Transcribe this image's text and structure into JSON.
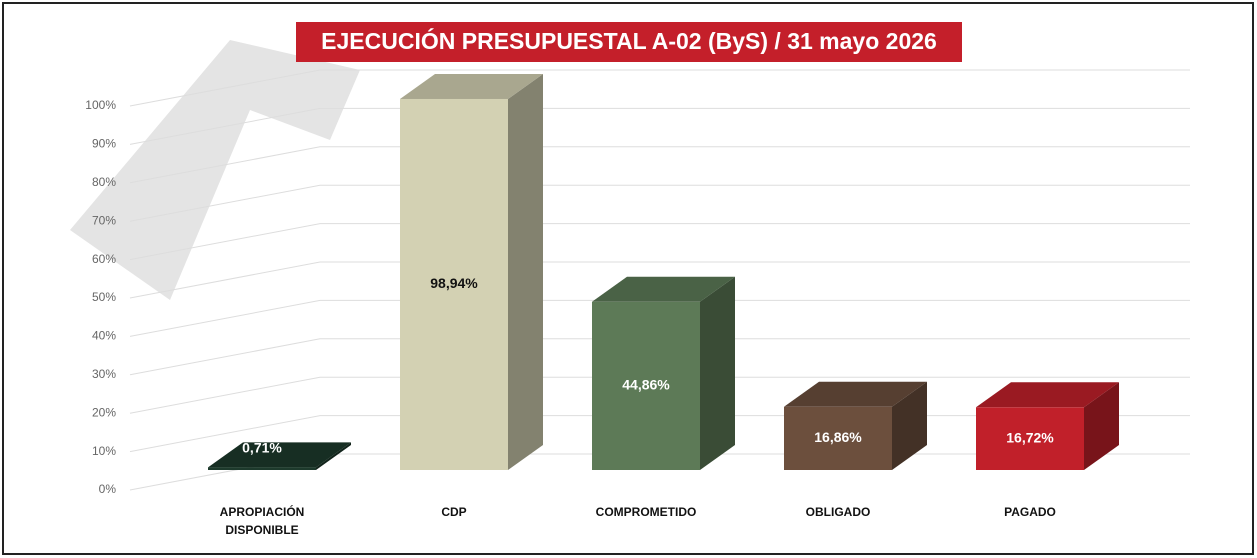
{
  "chart_data": {
    "type": "bar3d",
    "title": "EJECUCIÓN PRESUPUESTAL A-02 (ByS) / 31 mayo 2026",
    "categories": [
      "APROPIACIÓN DISPONIBLE",
      "CDP",
      "COMPROMETIDO",
      "OBLIGADO",
      "PAGADO"
    ],
    "values": [
      0.71,
      98.94,
      44.86,
      16.86,
      16.72
    ],
    "value_labels": [
      "0,71%",
      "98,94%",
      "44,86%",
      "16,86%",
      "16,72%"
    ],
    "colors": [
      "#1d3a2c",
      "#d3d1b3",
      "#5d7a57",
      "#6c4f3d",
      "#c1202a"
    ],
    "label_colors": [
      "#ffffff",
      "#111111",
      "#ffffff",
      "#ffffff",
      "#ffffff"
    ],
    "ylim": [
      0,
      100
    ],
    "yticks": [
      {
        "value": 0,
        "label": "0%"
      },
      {
        "value": 10,
        "label": "10%"
      },
      {
        "value": 20,
        "label": "20%"
      },
      {
        "value": 30,
        "label": "30%"
      },
      {
        "value": 40,
        "label": "40%"
      },
      {
        "value": 50,
        "label": "50%"
      },
      {
        "value": 60,
        "label": "60%"
      },
      {
        "value": 70,
        "label": "70%"
      },
      {
        "value": 80,
        "label": "80%"
      },
      {
        "value": 90,
        "label": "90%"
      },
      {
        "value": 100,
        "label": "100%"
      }
    ],
    "grid": true
  }
}
